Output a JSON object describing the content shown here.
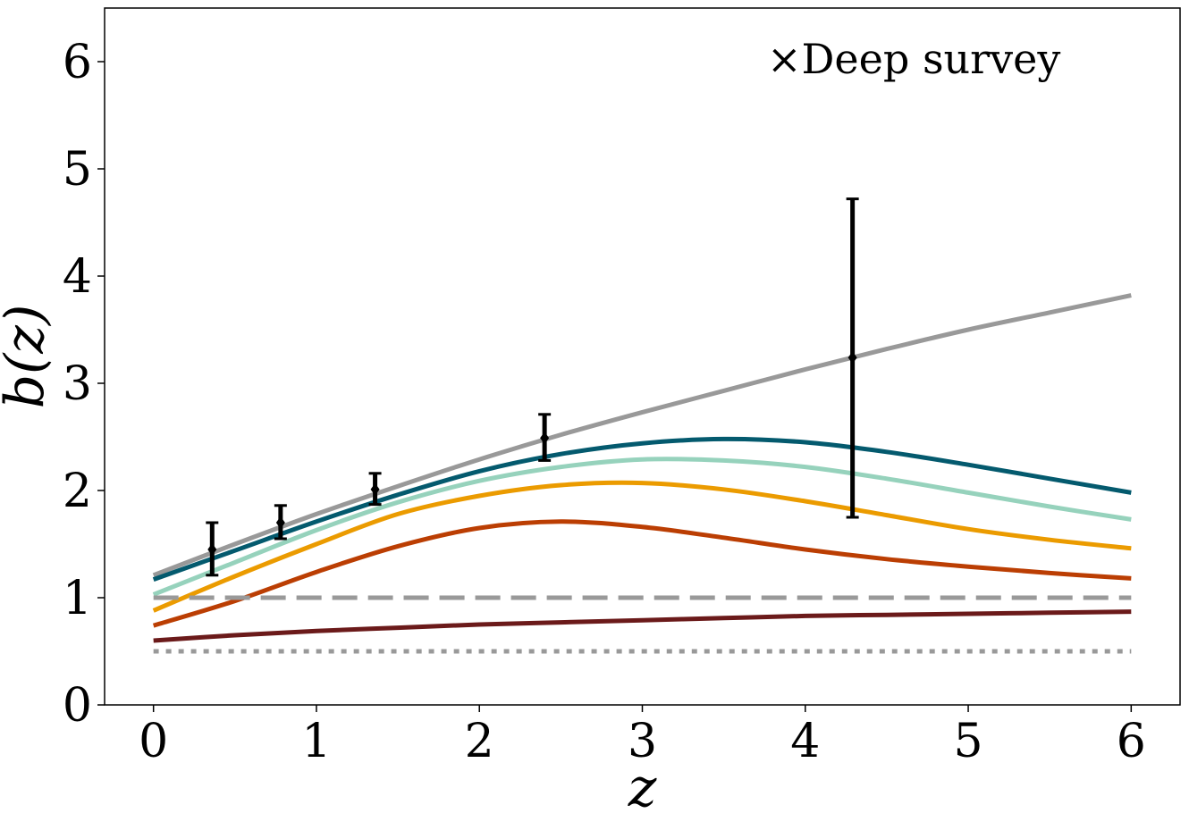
{
  "chart_data": {
    "type": "line",
    "xlabel": "z",
    "ylabel": "b(z)",
    "xlim": [
      -0.3,
      6.3
    ],
    "ylim": [
      0,
      6.5
    ],
    "xticks": [
      "0",
      "1",
      "2",
      "3",
      "4",
      "5",
      "6"
    ],
    "yticks": [
      "0",
      "1",
      "2",
      "3",
      "4",
      "5",
      "6"
    ],
    "annotation": "×Deep survey",
    "grid": false,
    "series": [
      {
        "color": "#999999",
        "style": "solid",
        "x": [
          0,
          0.5,
          1,
          1.5,
          2,
          2.5,
          3,
          3.5,
          4,
          4.5,
          5,
          5.5,
          6
        ],
        "y": [
          1.21,
          1.5,
          1.78,
          2.04,
          2.29,
          2.52,
          2.73,
          2.93,
          3.13,
          3.32,
          3.5,
          3.66,
          3.82
        ]
      },
      {
        "color": "#045a6e",
        "style": "solid",
        "x": [
          0,
          0.5,
          1,
          1.5,
          2,
          2.5,
          3,
          3.5,
          4,
          4.5,
          5,
          5.5,
          6
        ],
        "y": [
          1.17,
          1.44,
          1.71,
          1.96,
          2.18,
          2.34,
          2.44,
          2.48,
          2.45,
          2.36,
          2.24,
          2.11,
          1.98
        ]
      },
      {
        "color": "#96d2bc",
        "style": "solid",
        "x": [
          0,
          0.5,
          1,
          1.5,
          2,
          2.5,
          3,
          3.5,
          4,
          4.5,
          5,
          5.5,
          6
        ],
        "y": [
          1.03,
          1.33,
          1.63,
          1.89,
          2.09,
          2.22,
          2.29,
          2.28,
          2.22,
          2.11,
          1.98,
          1.85,
          1.73
        ]
      },
      {
        "color": "#eb9b00",
        "style": "solid",
        "x": [
          0,
          0.5,
          1,
          1.5,
          2,
          2.5,
          3,
          3.5,
          4,
          4.5,
          5,
          5.5,
          6
        ],
        "y": [
          0.88,
          1.2,
          1.5,
          1.78,
          1.95,
          2.05,
          2.07,
          2.01,
          1.9,
          1.77,
          1.64,
          1.54,
          1.46
        ]
      },
      {
        "color": "#bb3e03",
        "style": "solid",
        "x": [
          0,
          0.5,
          1,
          1.5,
          2,
          2.5,
          3,
          3.5,
          4,
          4.5,
          5,
          5.5,
          6
        ],
        "y": [
          0.74,
          0.97,
          1.24,
          1.48,
          1.65,
          1.71,
          1.66,
          1.56,
          1.45,
          1.36,
          1.29,
          1.23,
          1.18
        ]
      },
      {
        "color": "#6b1a1a",
        "style": "solid",
        "x": [
          0,
          0.5,
          1,
          1.5,
          2,
          2.5,
          3,
          3.5,
          4,
          4.5,
          5,
          5.5,
          6
        ],
        "y": [
          0.6,
          0.65,
          0.69,
          0.72,
          0.75,
          0.77,
          0.79,
          0.81,
          0.83,
          0.84,
          0.85,
          0.86,
          0.87
        ]
      },
      {
        "color": "#999999",
        "style": "dashed",
        "x": [
          0,
          6
        ],
        "y": [
          1.0,
          1.0
        ]
      },
      {
        "color": "#999999",
        "style": "dotted",
        "x": [
          0,
          6
        ],
        "y": [
          0.5,
          0.5
        ]
      }
    ],
    "points": [
      {
        "x": 0.36,
        "y": 1.45,
        "ylow": 1.21,
        "yhigh": 1.7
      },
      {
        "x": 0.78,
        "y": 1.7,
        "ylow": 1.55,
        "yhigh": 1.86
      },
      {
        "x": 1.36,
        "y": 2.01,
        "ylow": 1.87,
        "yhigh": 2.16
      },
      {
        "x": 2.4,
        "y": 2.49,
        "ylow": 2.28,
        "yhigh": 2.71
      },
      {
        "x": 4.29,
        "y": 3.24,
        "ylow": 1.75,
        "yhigh": 4.72
      }
    ]
  }
}
